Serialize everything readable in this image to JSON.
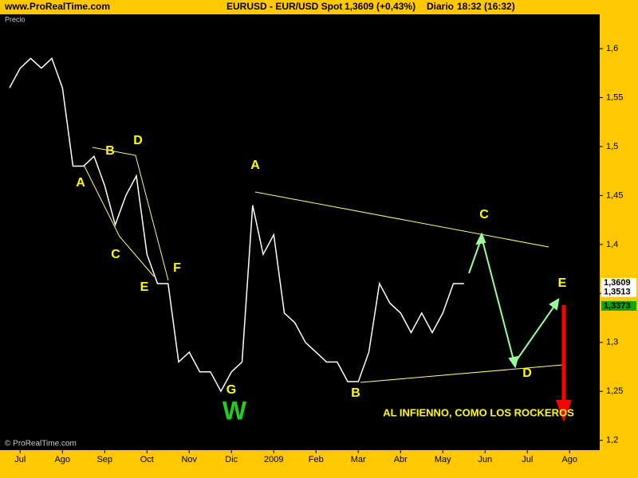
{
  "header": {
    "site": "www.ProRealTime.com",
    "instrument": "EURUSD - EUR/USD Spot",
    "quote": "1,3609 (+0,43%)",
    "period": "Diario",
    "time": "18:32 (16:32)"
  },
  "chart_data": {
    "type": "line",
    "panel_label": "Precio",
    "copyright": "© ProRealTime.com",
    "color": "#ffffff",
    "categories": [
      null,
      "Jul",
      null,
      null,
      null,
      "Ago",
      null,
      null,
      null,
      "Sep",
      null,
      null,
      null,
      "Oct",
      null,
      null,
      null,
      "Nov",
      null,
      null,
      null,
      "Dic",
      null,
      null,
      null,
      "2009",
      null,
      null,
      null,
      "Feb",
      null,
      null,
      null,
      "Mar",
      null,
      null,
      null,
      "Abr",
      null,
      null,
      null,
      "May",
      null,
      null,
      null,
      "Jun",
      null,
      null,
      null,
      "Jul",
      null,
      null,
      null,
      "Ago",
      null
    ],
    "values": [
      1.56,
      1.58,
      1.59,
      1.58,
      1.59,
      1.56,
      1.48,
      1.48,
      1.49,
      1.46,
      1.42,
      1.45,
      1.47,
      1.39,
      1.36,
      1.36,
      1.28,
      1.29,
      1.27,
      1.27,
      1.25,
      1.27,
      1.28,
      1.44,
      1.39,
      1.41,
      1.33,
      1.32,
      1.3,
      1.29,
      1.28,
      1.28,
      1.26,
      1.26,
      1.29,
      1.36,
      1.34,
      1.33,
      1.31,
      1.33,
      1.31,
      1.33,
      1.36,
      1.36,
      null,
      null,
      null,
      null,
      null,
      null,
      null,
      null,
      null,
      null,
      null
    ],
    "ylim": [
      1.19,
      1.635
    ],
    "yticks": [
      {
        "value": 1.2,
        "label": "1,2"
      },
      {
        "value": 1.25,
        "label": "1,25"
      },
      {
        "value": 1.3,
        "label": "1,3"
      },
      {
        "value": 1.35,
        "label": "1,35"
      },
      {
        "value": 1.4,
        "label": "1,4"
      },
      {
        "value": 1.45,
        "label": "1,45"
      },
      {
        "value": 1.5,
        "label": "1,5"
      },
      {
        "value": 1.55,
        "label": "1,55"
      },
      {
        "value": 1.6,
        "label": "1,6"
      }
    ],
    "price_tags": [
      {
        "value": 1.3609,
        "label": "1,3609",
        "color": "#ffffff"
      },
      {
        "value": 1.3513,
        "label": "1,3513",
        "color": "#ffffff"
      },
      {
        "value": 1.3373,
        "label": "1,3373",
        "color": "#00aa00"
      }
    ],
    "annotations": [
      "A",
      "B",
      "D",
      "C",
      "E",
      "F",
      "G",
      "W",
      "A",
      "C",
      "D",
      "E",
      "B",
      "AL INFIENNO, COMO LOS ROCKEROS"
    ]
  }
}
